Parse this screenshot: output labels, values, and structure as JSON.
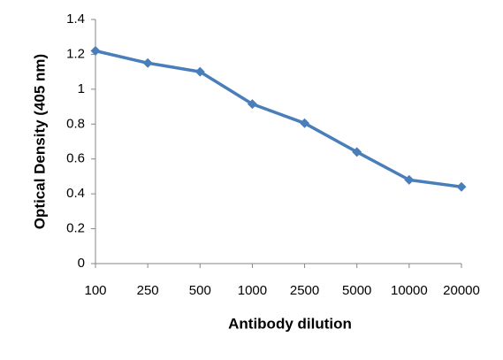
{
  "chart_data": {
    "type": "line",
    "x_label": "Antibody dilution",
    "y_label": "Optical Density (405 nm)",
    "categories": [
      "100",
      "250",
      "500",
      "1000",
      "2500",
      "5000",
      "10000",
      "20000"
    ],
    "series": [
      {
        "color": "#4a7ebb",
        "values": [
          1.22,
          1.15,
          1.1,
          0.915,
          0.805,
          0.64,
          0.48,
          0.44
        ]
      }
    ],
    "ylim": [
      0,
      1.4
    ],
    "yticks": [
      0,
      0.2,
      0.4,
      0.6,
      0.8,
      1,
      1.2,
      1.4
    ]
  }
}
